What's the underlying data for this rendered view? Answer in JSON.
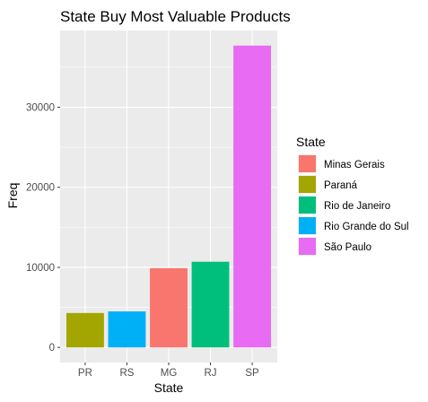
{
  "chart_data": {
    "type": "bar",
    "title": "State Buy Most Valuable Products",
    "xlabel": "State",
    "ylabel": "Freq",
    "categories": [
      "PR",
      "RS",
      "MG",
      "RJ",
      "SP"
    ],
    "values": [
      4300,
      4500,
      9900,
      10700,
      37700
    ],
    "category_fill": [
      "Paraná",
      "Rio Grande do Sul",
      "Minas Gerais",
      "Rio de Janeiro",
      "São Paulo"
    ],
    "y_ticks": [
      0,
      10000,
      20000,
      30000
    ],
    "y_tick_labels": [
      "0",
      "10000",
      "20000",
      "30000"
    ],
    "ylim": [
      -1885,
      39585
    ],
    "grid": true,
    "legend": {
      "title": "State",
      "position": "right",
      "entries": [
        {
          "label": "Minas Gerais",
          "color": "#F8766D"
        },
        {
          "label": "Paraná",
          "color": "#A3A500"
        },
        {
          "label": "Rio de Janeiro",
          "color": "#00BF7D"
        },
        {
          "label": "Rio Grande do Sul",
          "color": "#00B0F6"
        },
        {
          "label": "São Paulo",
          "color": "#E76BF3"
        }
      ]
    },
    "colors": {
      "panel_background": "#EBEBEB",
      "grid_major": "#FFFFFF",
      "tick_text": "#4D4D4D"
    }
  }
}
